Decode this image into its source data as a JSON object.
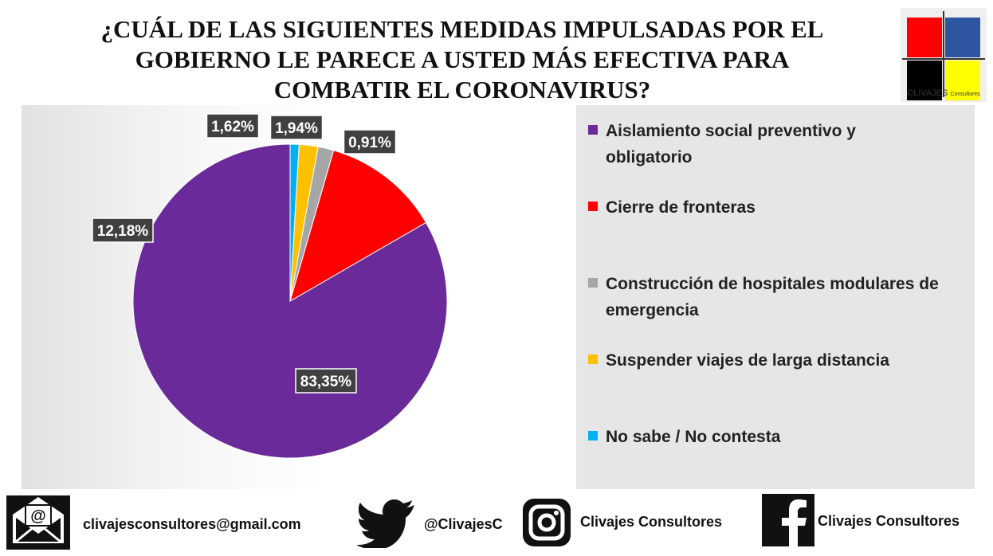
{
  "title_lines": [
    "¿CUÁL DE LAS SIGUIENTES MEDIDAS IMPULSADAS POR EL",
    "GOBIERNO LE PARECE A USTED MÁS EFECTIVA PARA",
    "COMBATIR EL CORONAVIRUS?"
  ],
  "logo": {
    "text": "CLIVAJES",
    "subtext": "Consultores"
  },
  "chart_data": {
    "type": "pie",
    "categories": [
      "Aislamiento social preventivo y obligatorio",
      "Cierre de fronteras",
      "Construcción de hospitales modulares de emergencia",
      "Suspender viajes de larga distancia",
      "No sabe / No contesta"
    ],
    "values": [
      83.35,
      12.18,
      1.62,
      1.94,
      0.91
    ],
    "data_labels": [
      "83,35%",
      "12,18%",
      "1,62%",
      "1,94%",
      "0,91%"
    ],
    "colors": [
      "#6a2a9a",
      "#ff0000",
      "#a6a6a6",
      "#ffc000",
      "#00b0f0"
    ],
    "legend_position": "right",
    "legend_lines": [
      [
        "Aislamiento social preventivo y",
        "obligatorio"
      ],
      [
        "Cierre de fronteras"
      ],
      [
        "Construcción de hospitales modulares de",
        "emergencia"
      ],
      [
        "Suspender viajes de larga distancia"
      ],
      [
        "No sabe / No contesta"
      ]
    ]
  },
  "footer": {
    "email": "clivajesconsultores@gmail.com",
    "twitter": "@ClivajesC",
    "instagram": "Clivajes Consultores",
    "facebook": "Clivajes Consultores",
    "icons": [
      "envelope-icon",
      "twitter-bird-icon",
      "instagram-icon",
      "facebook-icon"
    ]
  }
}
